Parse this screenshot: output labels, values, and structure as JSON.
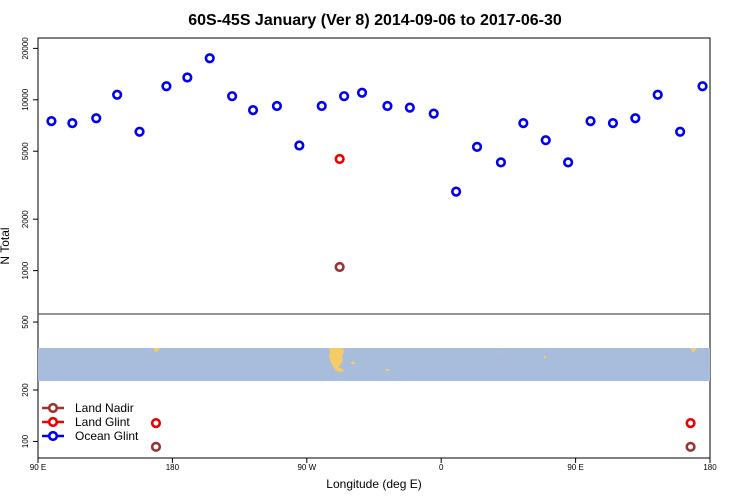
{
  "chart_data": {
    "type": "scatter",
    "title": "60S-45S January (Ver 8)   2014-09-06 to 2017-06-30",
    "xlabel": "Longitude (deg E)",
    "ylabel": "N Total",
    "y_scale": "log",
    "x_ticks": [
      {
        "lon": 90,
        "label": "90 E"
      },
      {
        "lon": 180,
        "label": "180"
      },
      {
        "lon": 270,
        "label": "90 W"
      },
      {
        "lon": 360,
        "label": "0"
      },
      {
        "lon": 450,
        "label": "90 E"
      },
      {
        "lon": 540,
        "label": "180"
      }
    ],
    "xlim": [
      90,
      540
    ],
    "y_ticks": [
      100,
      200,
      500,
      1000,
      2000,
      5000,
      10000,
      20000
    ],
    "ylim": [
      80,
      23000
    ],
    "colors": {
      "ocean_glint": "#0000ee",
      "land_glint": "#ee0000",
      "land_nadir": "#993333",
      "map_ocean": "#a8bcdb",
      "map_land": "#f5cc66",
      "divider": "#555555"
    },
    "legend": {
      "placement": "bottom-left",
      "entries": [
        {
          "label": "Land Nadir",
          "color": "#993333"
        },
        {
          "label": "Land Glint",
          "color": "#ee0000"
        },
        {
          "label": "Ocean Glint",
          "color": "#0000ee"
        }
      ]
    },
    "series": [
      {
        "name": "Ocean Glint",
        "color": "#0000ee",
        "points": [
          [
            99,
            7500
          ],
          [
            113,
            7300
          ],
          [
            129,
            7800
          ],
          [
            143,
            10700
          ],
          [
            158,
            6500
          ],
          [
            176,
            12000
          ],
          [
            190,
            13500
          ],
          [
            205,
            17500
          ],
          [
            220,
            10500
          ],
          [
            234,
            8700
          ],
          [
            250,
            9200
          ],
          [
            265,
            5400
          ],
          [
            280,
            9200
          ],
          [
            295,
            10500
          ],
          [
            307,
            11000
          ],
          [
            324,
            9200
          ],
          [
            339,
            9000
          ],
          [
            355,
            8300
          ],
          [
            370,
            2900
          ],
          [
            384,
            5300
          ],
          [
            400,
            4300
          ],
          [
            415,
            7300
          ],
          [
            430,
            5800
          ],
          [
            445,
            4300
          ],
          [
            460,
            7500
          ],
          [
            475,
            7300
          ],
          [
            490,
            7800
          ],
          [
            505,
            10700
          ],
          [
            520,
            6500
          ],
          [
            535,
            12000
          ]
        ]
      },
      {
        "name": "Land Glint",
        "color": "#ee0000",
        "points": [
          [
            292,
            4500
          ],
          [
            169,
            128
          ],
          [
            527,
            128
          ]
        ]
      },
      {
        "name": "Land Nadir",
        "color": "#993333",
        "points": [
          [
            292,
            1050
          ],
          [
            169,
            93
          ],
          [
            527,
            93
          ]
        ]
      }
    ]
  }
}
